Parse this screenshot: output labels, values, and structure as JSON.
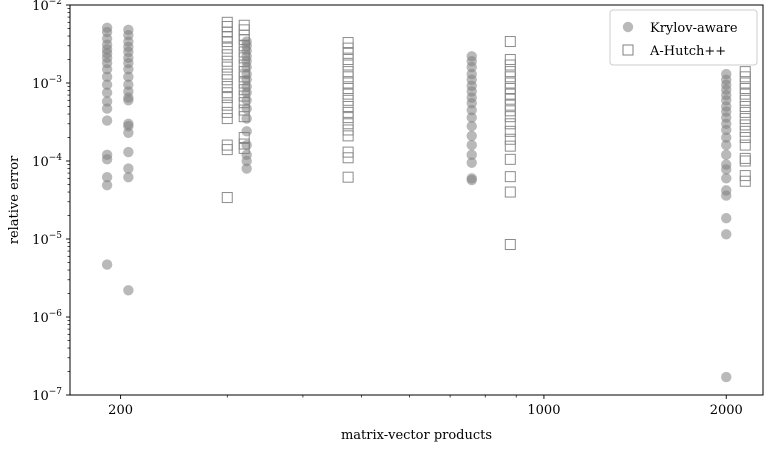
{
  "chart_data": {
    "type": "scatter",
    "xlabel": "matrix-vector products",
    "ylabel": "relative error",
    "xscale": "log",
    "yscale": "log",
    "xlim": [
      165,
      2300
    ],
    "ylim": [
      1e-07,
      0.01
    ],
    "grid": false,
    "legend_position": "top-right",
    "x_ticks": [
      {
        "value": 200,
        "label": "200"
      },
      {
        "value": 1000,
        "label": "1000"
      },
      {
        "value": 2000,
        "label": "2000"
      }
    ],
    "y_ticks": [
      {
        "value": 1e-07,
        "base": "10",
        "exp": "−7"
      },
      {
        "value": 1e-06,
        "base": "10",
        "exp": "−6"
      },
      {
        "value": 1e-05,
        "base": "10",
        "exp": "−5"
      },
      {
        "value": 0.0001,
        "base": "10",
        "exp": "−4"
      },
      {
        "value": 0.001,
        "base": "10",
        "exp": "−3"
      },
      {
        "value": 0.01,
        "base": "10",
        "exp": "−2"
      }
    ],
    "series": [
      {
        "name": "Krylov-aware",
        "marker": "circle",
        "color": "#808080",
        "points": [
          [
            190,
            0.0051
          ],
          [
            190,
            0.0045
          ],
          [
            190,
            0.0037
          ],
          [
            190,
            0.0031
          ],
          [
            190,
            0.0027
          ],
          [
            190,
            0.0024
          ],
          [
            190,
            0.0021
          ],
          [
            190,
            0.0018
          ],
          [
            190,
            0.0015
          ],
          [
            190,
            0.0012
          ],
          [
            190,
            0.00095
          ],
          [
            190,
            0.00075
          ],
          [
            190,
            0.00058
          ],
          [
            190,
            0.00047
          ],
          [
            190,
            0.00033
          ],
          [
            190,
            0.00012
          ],
          [
            190,
            0.000105
          ],
          [
            190,
            6.2e-05
          ],
          [
            190,
            4.9e-05
          ],
          [
            190,
            4.7e-06
          ],
          [
            206,
            0.0048
          ],
          [
            206,
            0.0041
          ],
          [
            206,
            0.0034
          ],
          [
            206,
            0.0029
          ],
          [
            206,
            0.0025
          ],
          [
            206,
            0.0021
          ],
          [
            206,
            0.0018
          ],
          [
            206,
            0.0015
          ],
          [
            206,
            0.0012
          ],
          [
            206,
            0.00095
          ],
          [
            206,
            0.00078
          ],
          [
            206,
            0.00065
          ],
          [
            206,
            0.0006
          ],
          [
            206,
            0.0003
          ],
          [
            206,
            0.00028
          ],
          [
            206,
            0.00023
          ],
          [
            206,
            0.00013
          ],
          [
            206,
            8e-05
          ],
          [
            206,
            6.2e-05
          ],
          [
            206,
            2.2e-06
          ],
          [
            323,
            0.0034
          ],
          [
            323,
            0.003
          ],
          [
            323,
            0.0026
          ],
          [
            323,
            0.0022
          ],
          [
            323,
            0.0019
          ],
          [
            323,
            0.0016
          ],
          [
            323,
            0.0013
          ],
          [
            323,
            0.0011
          ],
          [
            323,
            0.0009
          ],
          [
            323,
            0.00075
          ],
          [
            323,
            0.0006
          ],
          [
            323,
            0.00047
          ],
          [
            323,
            0.00035
          ],
          [
            323,
            0.00024
          ],
          [
            323,
            0.00016
          ],
          [
            323,
            0.00012
          ],
          [
            323,
            0.0001
          ],
          [
            323,
            8e-05
          ],
          [
            760,
            0.0022
          ],
          [
            760,
            0.0019
          ],
          [
            760,
            0.0016
          ],
          [
            760,
            0.0013
          ],
          [
            760,
            0.0011
          ],
          [
            760,
            0.00092
          ],
          [
            760,
            0.00078
          ],
          [
            760,
            0.00065
          ],
          [
            760,
            0.00055
          ],
          [
            760,
            0.00045
          ],
          [
            760,
            0.00036
          ],
          [
            760,
            0.00028
          ],
          [
            760,
            0.00021
          ],
          [
            760,
            0.00016
          ],
          [
            760,
            0.00012
          ],
          [
            760,
            9.5e-05
          ],
          [
            760,
            6e-05
          ],
          [
            760,
            5.7e-05
          ],
          [
            2000,
            0.0013
          ],
          [
            2000,
            0.0011
          ],
          [
            2000,
            0.00095
          ],
          [
            2000,
            0.00082
          ],
          [
            2000,
            0.0007
          ],
          [
            2000,
            0.0006
          ],
          [
            2000,
            0.0005
          ],
          [
            2000,
            0.00043
          ],
          [
            2000,
            0.00036
          ],
          [
            2000,
            0.0003
          ],
          [
            2000,
            0.00025
          ],
          [
            2000,
            0.0002
          ],
          [
            2000,
            0.00016
          ],
          [
            2000,
            0.00012
          ],
          [
            2000,
            9e-05
          ],
          [
            2000,
            7.8e-05
          ],
          [
            2000,
            6e-05
          ],
          [
            2000,
            4.2e-05
          ],
          [
            2000,
            3.6e-05
          ],
          [
            2000,
            1.85e-05
          ],
          [
            2000,
            1.15e-05
          ],
          [
            2000,
            1.7e-07
          ]
        ]
      },
      {
        "name": "A-Hutch++",
        "marker": "square",
        "color": "#808080",
        "points": [
          [
            300,
            0.006
          ],
          [
            300,
            0.0053
          ],
          [
            300,
            0.0045
          ],
          [
            300,
            0.0039
          ],
          [
            300,
            0.0034
          ],
          [
            300,
            0.0028
          ],
          [
            300,
            0.0023
          ],
          [
            300,
            0.0019
          ],
          [
            300,
            0.0016
          ],
          [
            300,
            0.0013
          ],
          [
            300,
            0.0011
          ],
          [
            300,
            0.0009
          ],
          [
            300,
            0.00075
          ],
          [
            300,
            0.00065
          ],
          [
            300,
            0.00052
          ],
          [
            300,
            0.00042
          ],
          [
            300,
            0.00035
          ],
          [
            300,
            0.00016
          ],
          [
            300,
            0.00014
          ],
          [
            300,
            3.4e-05
          ],
          [
            320,
            0.0055
          ],
          [
            320,
            0.0048
          ],
          [
            320,
            0.0041
          ],
          [
            320,
            0.0036
          ],
          [
            320,
            0.003
          ],
          [
            320,
            0.0025
          ],
          [
            320,
            0.0021
          ],
          [
            320,
            0.0017
          ],
          [
            320,
            0.0014
          ],
          [
            320,
            0.0012
          ],
          [
            320,
            0.001
          ],
          [
            320,
            0.00082
          ],
          [
            320,
            0.00068
          ],
          [
            320,
            0.00056
          ],
          [
            320,
            0.00045
          ],
          [
            320,
            0.00037
          ],
          [
            320,
            0.0002
          ],
          [
            320,
            0.000165
          ],
          [
            320,
            0.000145
          ],
          [
            475,
            0.0033
          ],
          [
            475,
            0.0028
          ],
          [
            475,
            0.0024
          ],
          [
            475,
            0.002
          ],
          [
            475,
            0.0017
          ],
          [
            475,
            0.0014
          ],
          [
            475,
            0.0012
          ],
          [
            475,
            0.001
          ],
          [
            475,
            0.00085
          ],
          [
            475,
            0.00072
          ],
          [
            475,
            0.0006
          ],
          [
            475,
            0.0005
          ],
          [
            475,
            0.00042
          ],
          [
            475,
            0.00036
          ],
          [
            475,
            0.0003
          ],
          [
            475,
            0.00025
          ],
          [
            475,
            0.00021
          ],
          [
            475,
            0.00013
          ],
          [
            475,
            0.00011
          ],
          [
            475,
            6.2e-05
          ],
          [
            880,
            0.0034
          ],
          [
            880,
            0.002
          ],
          [
            880,
            0.0017
          ],
          [
            880,
            0.0014
          ],
          [
            880,
            0.0012
          ],
          [
            880,
            0.001
          ],
          [
            880,
            0.00085
          ],
          [
            880,
            0.00072
          ],
          [
            880,
            0.00062
          ],
          [
            880,
            0.00052
          ],
          [
            880,
            0.00044
          ],
          [
            880,
            0.00037
          ],
          [
            880,
            0.0003
          ],
          [
            880,
            0.00024
          ],
          [
            880,
            0.00019
          ],
          [
            880,
            0.000155
          ],
          [
            880,
            0.000105
          ],
          [
            880,
            6.3e-05
          ],
          [
            880,
            4e-05
          ],
          [
            880,
            8.5e-06
          ],
          [
            2150,
            0.0014
          ],
          [
            2150,
            0.0012
          ],
          [
            2150,
            0.001
          ],
          [
            2150,
            0.00085
          ],
          [
            2150,
            0.00072
          ],
          [
            2150,
            0.0006
          ],
          [
            2150,
            0.0005
          ],
          [
            2150,
            0.00042
          ],
          [
            2150,
            0.00035
          ],
          [
            2150,
            0.00029
          ],
          [
            2150,
            0.00024
          ],
          [
            2150,
            0.0002
          ],
          [
            2150,
            0.00016
          ],
          [
            2150,
            0.000108
          ],
          [
            2150,
            0.0001
          ],
          [
            2150,
            6.5e-05
          ],
          [
            2150,
            5.5e-05
          ]
        ]
      }
    ]
  }
}
